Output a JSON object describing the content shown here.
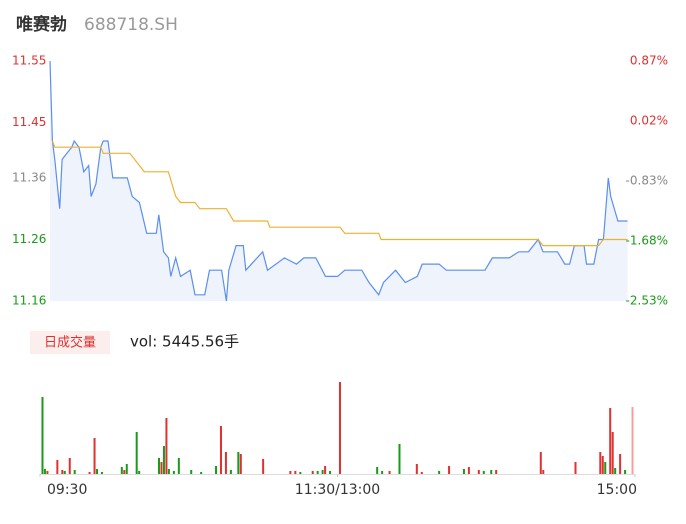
{
  "header": {
    "name": "唯赛勃",
    "code": "688718.SH"
  },
  "chart_data": [
    {
      "type": "line",
      "ylim": [
        11.16,
        11.55
      ],
      "yticks": [
        11.55,
        11.45,
        11.36,
        11.26,
        11.16
      ],
      "y2lim": [
        -2.53,
        0.87
      ],
      "y2ticks": [
        {
          "value": 0.87,
          "label": "0.87%"
        },
        {
          "value": 0.02,
          "label": "0.02%"
        },
        {
          "value": -0.83,
          "label": "-0.83%"
        },
        {
          "value": -1.68,
          "label": "-1.68%"
        },
        {
          "value": -2.53,
          "label": "-2.53%"
        }
      ],
      "tick_colors": [
        "#e03030",
        "#e03030",
        "#888888",
        "#1a9a1a",
        "#1a9a1a"
      ],
      "xlim": [
        0,
        240
      ],
      "area_fill": "#eef3fc",
      "series": [
        {
          "color": "#5b8ff0",
          "x": [
            0,
            1,
            2,
            4,
            5,
            7,
            9,
            10,
            12,
            14,
            16,
            17,
            19,
            21,
            22,
            24,
            26,
            29,
            32,
            34,
            37,
            40,
            44,
            45,
            47,
            49,
            50,
            52,
            54,
            58,
            60,
            64,
            66,
            71,
            73,
            74,
            77,
            80,
            81,
            88,
            90,
            97,
            102,
            105,
            110,
            114,
            119,
            122,
            129,
            132,
            136,
            138,
            143,
            147,
            152,
            154,
            161,
            164,
            180,
            183,
            190,
            194,
            198,
            202,
            204,
            210,
            213,
            215,
            217,
            221,
            222,
            225,
            227,
            229,
            231,
            232,
            235,
            239
          ],
          "values": [
            11.55,
            11.42,
            11.39,
            11.31,
            11.39,
            11.4,
            11.41,
            11.42,
            11.41,
            11.37,
            11.38,
            11.33,
            11.35,
            11.41,
            11.42,
            11.42,
            11.36,
            11.36,
            11.36,
            11.33,
            11.32,
            11.27,
            11.27,
            11.3,
            11.24,
            11.23,
            11.2,
            11.23,
            11.2,
            11.21,
            11.17,
            11.17,
            11.21,
            11.21,
            11.16,
            11.21,
            11.25,
            11.25,
            11.21,
            11.24,
            11.21,
            11.23,
            11.22,
            11.23,
            11.23,
            11.2,
            11.2,
            11.21,
            11.21,
            11.19,
            11.17,
            11.19,
            11.21,
            11.19,
            11.2,
            11.22,
            11.22,
            11.21,
            11.21,
            11.23,
            11.23,
            11.24,
            11.24,
            11.26,
            11.24,
            11.24,
            11.22,
            11.22,
            11.25,
            11.25,
            11.22,
            11.22,
            11.26,
            11.26,
            11.36,
            11.33,
            11.29,
            11.29
          ]
        },
        {
          "color": "#f0b030",
          "x": [
            1,
            2,
            21,
            22,
            33,
            39,
            49,
            52,
            54,
            60,
            62,
            73,
            76,
            90,
            91,
            120,
            122,
            136,
            137,
            202,
            204,
            227,
            229,
            239
          ],
          "values": [
            11.42,
            11.41,
            11.41,
            11.4,
            11.4,
            11.37,
            11.37,
            11.33,
            11.32,
            11.32,
            11.31,
            11.31,
            11.29,
            11.29,
            11.28,
            11.28,
            11.27,
            11.27,
            11.26,
            11.26,
            11.25,
            11.25,
            11.26,
            11.26
          ]
        }
      ]
    },
    {
      "type": "bar",
      "label": "日成交量",
      "summary": "vol: 5445.56手",
      "xlim": [
        0,
        240
      ],
      "xticks": [
        {
          "value": 0,
          "label": "09:30"
        },
        {
          "value": 120,
          "label": "11:30/13:00"
        },
        {
          "value": 240,
          "label": "15:00"
        }
      ],
      "ylim": [
        0,
        95
      ],
      "x": [
        1,
        2,
        3,
        7,
        9,
        10,
        12,
        14,
        20,
        22,
        23,
        25,
        33,
        34,
        35,
        39,
        40,
        48,
        49,
        50,
        51,
        52,
        54,
        56,
        61,
        65,
        71,
        73,
        75,
        77,
        80,
        81,
        90,
        101,
        103,
        105,
        110,
        112,
        114,
        115,
        117,
        121,
        136,
        138,
        141,
        145,
        152,
        154,
        161,
        165,
        171,
        173,
        177,
        179,
        182,
        184,
        202,
        203,
        216,
        226,
        227,
        228,
        230,
        231,
        232,
        234,
        236,
        239
      ],
      "values": [
        77,
        5,
        3,
        14,
        4,
        3,
        16,
        4,
        2,
        36,
        5,
        2,
        7,
        4,
        10,
        42,
        3,
        16,
        12,
        28,
        56,
        5,
        3,
        16,
        4,
        2,
        8,
        48,
        22,
        4,
        22,
        20,
        15,
        3,
        3,
        2,
        3,
        3,
        4,
        8,
        3,
        92,
        7,
        3,
        3,
        30,
        10,
        2,
        3,
        8,
        5,
        7,
        4,
        3,
        4,
        4,
        22,
        4,
        12,
        22,
        18,
        12,
        66,
        42,
        6,
        20,
        4,
        67
      ],
      "colors": [
        "#1a9a1a",
        "#1a9a1a",
        "#e03030",
        "#e03030",
        "#e03030",
        "#1a9a1a",
        "#e03030",
        "#1a9a1a",
        "#e03030",
        "#e03030",
        "#1a9a1a",
        "#1a9a1a",
        "#1a9a1a",
        "#e03030",
        "#1a9a1a",
        "#1a9a1a",
        "#1a9a1a",
        "#1a9a1a",
        "#e03030",
        "#1a9a1a",
        "#e03030",
        "#1a9a1a",
        "#1a9a1a",
        "#1a9a1a",
        "#1a9a1a",
        "#1a9a1a",
        "#1a9a1a",
        "#e03030",
        "#e03030",
        "#1a9a1a",
        "#1a9a1a",
        "#e03030",
        "#e03030",
        "#e03030",
        "#e03030",
        "#1a9a1a",
        "#e03030",
        "#1a9a1a",
        "#1a9a1a",
        "#e03030",
        "#1a9a1a",
        "#e03030",
        "#1a9a1a",
        "#1a9a1a",
        "#e03030",
        "#1a9a1a",
        "#e03030",
        "#e03030",
        "#1a9a1a",
        "#e03030",
        "#1a9a1a",
        "#e03030",
        "#e03030",
        "#1a9a1a",
        "#1a9a1a",
        "#e03030",
        "#e03030",
        "#e03030",
        "#e03030",
        "#e03030",
        "#e03030",
        "#1a9a1a",
        "#e03030",
        "#e03030",
        "#1a9a1a",
        "#e03030",
        "#1a9a1a",
        "#f4a0a0"
      ]
    }
  ]
}
